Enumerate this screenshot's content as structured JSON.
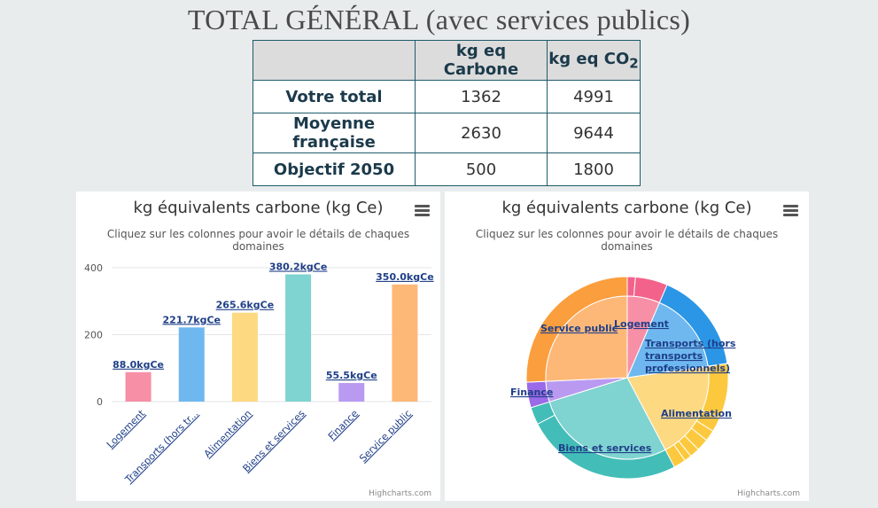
{
  "title": "TOTAL GÉNÉRAL (avec services publics)",
  "table": {
    "col1": "kg eq Carbone",
    "col2_prefix": "kg eq CO",
    "col2_sub": "2",
    "rows": [
      {
        "label": "Votre total",
        "c": "1362",
        "co2": "4991"
      },
      {
        "label": "Moyenne française",
        "c": "2630",
        "co2": "9644"
      },
      {
        "label": "Objectif 2050",
        "c": "500",
        "co2": "1800"
      }
    ]
  },
  "left_panel": {
    "title": "kg équivalents carbone (kg Ce)",
    "subtitle": "Cliquez sur les colonnes pour avoir le détails de chaques domaines",
    "credits": "Highcharts.com"
  },
  "right_panel": {
    "title": "kg équivalents carbone (kg Ce)",
    "subtitle": "Cliquez sur les colonnes pour avoir le détails de chaques domaines",
    "credits": "Highcharts.com"
  },
  "chart_data": [
    {
      "type": "bar",
      "title": "kg équivalents carbone (kg Ce)",
      "subtitle": "Cliquez sur les colonnes pour avoir le détails de chaques domaines",
      "categories": [
        "Logement",
        "Transports (hors tr...",
        "Alimentation",
        "Biens et services",
        "Finance",
        "Service public"
      ],
      "values": [
        88.0,
        221.7,
        265.6,
        380.2,
        55.5,
        350.0
      ],
      "data_labels": [
        "88.0kgCe",
        "221.7kgCe",
        "265.6kgCe",
        "380.2kgCe",
        "55.5kgCe",
        "350.0kgCe"
      ],
      "colors": [
        "#f78fa7",
        "#6eb8ef",
        "#fdd982",
        "#7fd3d0",
        "#b99af0",
        "#fdb878"
      ],
      "yticks": [
        0,
        200,
        400
      ],
      "ylim": [
        0,
        400
      ],
      "grid": true
    },
    {
      "type": "pie",
      "title": "kg équivalents carbone (kg Ce)",
      "subtitle": "Cliquez sur les colonnes pour avoir le détails de chaques domaines",
      "labels": [
        "Logement",
        "Transports (hors transports professionnels)",
        "Alimentation",
        "Biens et services",
        "Finance",
        "Service public"
      ],
      "values": [
        88.0,
        221.7,
        265.6,
        380.2,
        55.5,
        350.0
      ],
      "colors": [
        "#f78fa7",
        "#6eb8ef",
        "#fdd982",
        "#7fd3d0",
        "#b99af0",
        "#fdb878"
      ],
      "outer_colors": [
        "#f2628a",
        "#2b96e6",
        "#fcc93e",
        "#43bdb8",
        "#9b6ae8",
        "#fb9e3e"
      ],
      "outer_ring_split": [
        [
          0.2,
          0.8
        ],
        [
          1
        ],
        [
          0.45,
          0.12,
          0.09,
          0.1,
          0.08,
          0.06,
          0.1
        ],
        [
          0.9,
          0.1
        ],
        [
          1
        ],
        [
          1
        ]
      ]
    }
  ]
}
